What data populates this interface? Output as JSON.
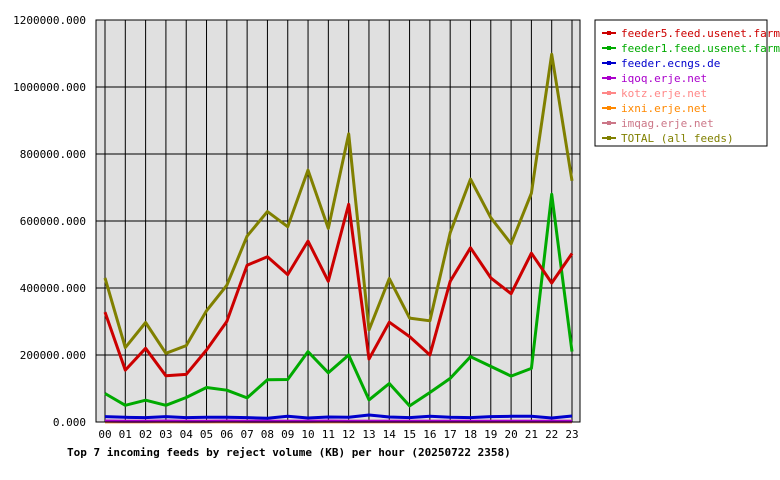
{
  "chart_data": {
    "type": "line",
    "title": "Top 7 incoming feeds by reject volume (KB) per hour (20250722 2358)",
    "xlabel": "",
    "ylabel": "",
    "ylim": [
      0,
      1200000
    ],
    "y_ticks": [
      "0.000",
      "200000.000",
      "400000.000",
      "600000.000",
      "800000.000",
      "1000000.000",
      "1200000.000"
    ],
    "y_tick_values": [
      0,
      200000,
      400000,
      600000,
      800000,
      1000000,
      1200000
    ],
    "categories": [
      "00",
      "01",
      "02",
      "03",
      "04",
      "05",
      "06",
      "07",
      "08",
      "09",
      "10",
      "11",
      "12",
      "13",
      "14",
      "15",
      "16",
      "17",
      "18",
      "19",
      "20",
      "21",
      "22",
      "23"
    ],
    "grid": true,
    "legend_position": "top-right",
    "series": [
      {
        "name": "feeder5.feed.usenet.farm",
        "color": "#cc0000",
        "values": [
          328000,
          155000,
          220000,
          138000,
          142000,
          215000,
          300000,
          468000,
          493000,
          440000,
          540000,
          420000,
          650000,
          188000,
          298000,
          255000,
          200000,
          420000,
          520000,
          430000,
          383000,
          504000,
          415000,
          503000
        ]
      },
      {
        "name": "feeder1.feed.usenet.farm",
        "color": "#00aa00",
        "values": [
          85000,
          50000,
          65000,
          50000,
          73000,
          103000,
          95000,
          72000,
          126000,
          127000,
          210000,
          147000,
          200000,
          66000,
          115000,
          48000,
          88000,
          130000,
          195000,
          166000,
          137000,
          160000,
          680000,
          210000
        ]
      },
      {
        "name": "feeder.ecngs.de",
        "color": "#0000cc",
        "values": [
          16000,
          14000,
          13000,
          16000,
          13000,
          14000,
          14000,
          13000,
          11000,
          17000,
          12000,
          15000,
          14000,
          21000,
          15000,
          13000,
          17000,
          14000,
          13000,
          16000,
          17000,
          17000,
          12000,
          18000
        ]
      },
      {
        "name": "iqoq.erje.net",
        "color": "#aa00cc",
        "values": [
          3000,
          2000,
          2000,
          3000,
          2000,
          2000,
          3000,
          2000,
          2000,
          2000,
          2000,
          3000,
          2000,
          2000,
          2000,
          2000,
          2000,
          2000,
          2000,
          2000,
          2000,
          2000,
          2000,
          2000
        ]
      },
      {
        "name": "kotz.erje.net",
        "color": "#ff8888",
        "values": [
          2000,
          2000,
          2000,
          2000,
          2000,
          2000,
          2000,
          2000,
          2000,
          2000,
          2000,
          2000,
          2000,
          2000,
          2000,
          2000,
          2000,
          2000,
          2000,
          2000,
          2000,
          2000,
          2000,
          2000
        ]
      },
      {
        "name": "ixni.erje.net",
        "color": "#ff8800",
        "values": [
          1000,
          1000,
          1000,
          1000,
          1000,
          1000,
          1000,
          1000,
          1000,
          1000,
          1000,
          1000,
          1000,
          1000,
          1000,
          1000,
          1000,
          1000,
          1000,
          1000,
          1000,
          1000,
          1000,
          1000
        ]
      },
      {
        "name": "imqag.erje.net",
        "color": "#cc7788",
        "values": [
          1000,
          1000,
          1000,
          1000,
          1000,
          1000,
          1000,
          1000,
          1000,
          1000,
          1000,
          1000,
          1000,
          1000,
          1000,
          1000,
          1000,
          1000,
          1000,
          1000,
          1000,
          1000,
          1000,
          1000
        ]
      },
      {
        "name": "TOTAL (all feeds)",
        "color": "#808000",
        "values": [
          430000,
          222000,
          297000,
          205000,
          228000,
          332000,
          408000,
          555000,
          628000,
          583000,
          752000,
          578000,
          860000,
          275000,
          428000,
          310000,
          302000,
          565000,
          725000,
          610000,
          532000,
          683000,
          1098000,
          720000
        ]
      }
    ]
  }
}
